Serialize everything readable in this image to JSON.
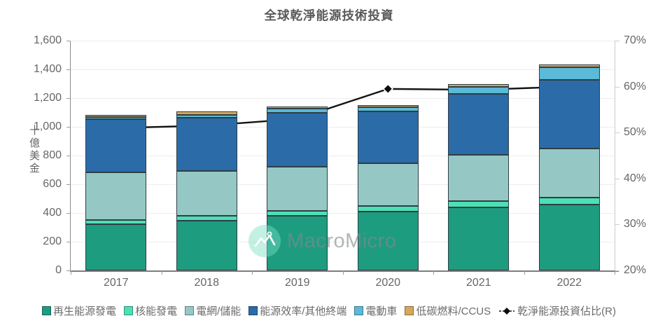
{
  "chart": {
    "title": "全球乾淨能源技術投資"
  },
  "watermark": {
    "brand": "MacroMicro",
    "logo_icon": "macromicro-mountain-logo"
  },
  "chart_data": {
    "type": "bar",
    "subtype": "stacked-bars-with-right-axis-line",
    "title": "全球乾淨能源技術投資",
    "categories": [
      "2017",
      "2018",
      "2019",
      "2020",
      "2021",
      "2022"
    ],
    "unit": "十億美金 (billion USD)",
    "series": [
      {
        "name": "再生能源發電",
        "color": "#1E9C80",
        "values": [
          320,
          345,
          380,
          410,
          440,
          460
        ]
      },
      {
        "name": "核能發電",
        "color": "#4CE0B5",
        "values": [
          30,
          35,
          35,
          40,
          45,
          45
        ]
      },
      {
        "name": "電網/儲能",
        "color": "#95C8C4",
        "values": [
          335,
          315,
          305,
          295,
          320,
          345
        ]
      },
      {
        "name": "能源效率/其他終端",
        "color": "#2B6BA8",
        "values": [
          370,
          370,
          380,
          360,
          425,
          475
        ]
      },
      {
        "name": "電動車",
        "color": "#5BBAD7",
        "values": [
          15,
          20,
          25,
          30,
          50,
          90
        ]
      },
      {
        "name": "低碳燃料/CCUS",
        "color": "#D7A75C",
        "values": [
          15,
          20,
          15,
          15,
          20,
          20
        ]
      }
    ],
    "totals": [
      1085,
      1105,
      1140,
      1150,
      1300,
      1435
    ],
    "line_series": {
      "name": "乾淨能源投資佔比(R)",
      "color": "#131313",
      "marker": "diamond",
      "axis": "right",
      "values": [
        51,
        51.5,
        53,
        59.5,
        59.3,
        60
      ]
    },
    "left_axis": {
      "label": "十億美金",
      "min": 0,
      "max": 1600,
      "tick_step": 200,
      "tick_labels": [
        "0",
        "200",
        "400",
        "600",
        "800",
        "1,000",
        "1,200",
        "1,400",
        "1,600"
      ]
    },
    "right_axis": {
      "min": 20,
      "max": 70,
      "tick_step": 10,
      "tick_labels": [
        "20%",
        "30%",
        "40%",
        "50%",
        "60%",
        "70%"
      ]
    },
    "grid": "horizontal",
    "legend_position": "bottom"
  }
}
